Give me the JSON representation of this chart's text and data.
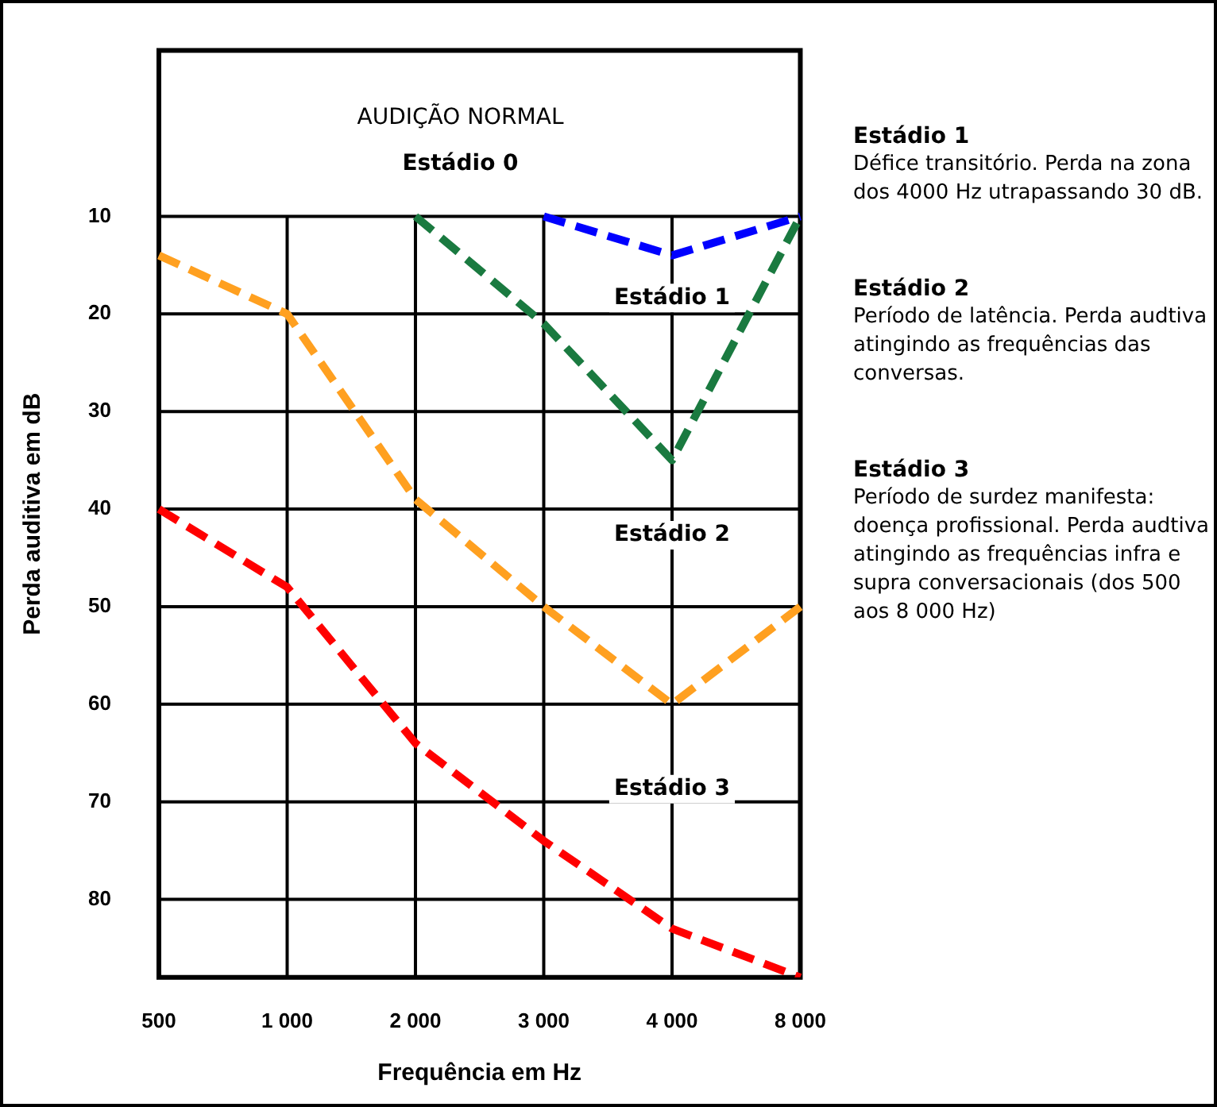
{
  "chart_data": {
    "type": "line",
    "xlabel": "Frequência em Hz",
    "ylabel": "Perda auditiva em dB",
    "categories": [
      "500",
      "1 000",
      "2 000",
      "3 000",
      "4 000",
      "8 000"
    ],
    "series": [
      {
        "color": "#0000ff",
        "values": [
          null,
          null,
          null,
          10,
          14,
          10
        ]
      },
      {
        "color": "#1a7a40",
        "values": [
          null,
          null,
          10,
          21,
          35,
          10
        ]
      },
      {
        "color": "#ffa020",
        "values": [
          14,
          20,
          39,
          50,
          60,
          50
        ]
      },
      {
        "color": "#ff0000",
        "values": [
          40,
          48,
          64,
          74,
          83,
          88
        ]
      }
    ],
    "ylim": [
      88,
      -7
    ],
    "yticks": [
      10,
      20,
      30,
      40,
      50,
      60,
      70,
      80
    ],
    "grid": true,
    "legend": false,
    "marker": "none",
    "line_style": "dashed",
    "annotations": [
      "AUDIÇÃO NORMAL",
      "Estádio 0",
      "Estádio 1",
      "Estádio 2",
      "Estádio 3",
      "Estádio 1",
      "Défice transitório. Perda na zona dos 4000 Hz utrapassando 30 dB.",
      "Estádio 2",
      "Período de latência. Perda audtiva atingindo as frequências das conversas.",
      "Estádio 3",
      "Período de surdez manifesta: doença profissional. Perda audtiva atingindo as frequências infra e supra conversacionais (dos 500 aos 8 000 Hz)"
    ]
  }
}
